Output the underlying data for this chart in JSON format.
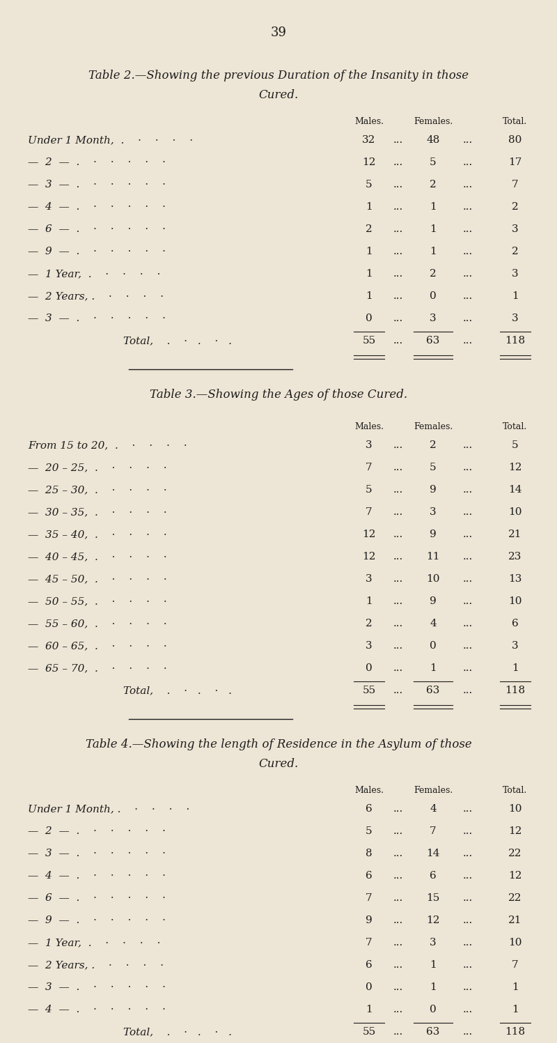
{
  "bg_color": "#ede5d5",
  "page_number": "39",
  "table2": {
    "title_line1": "Table 2.—Showing the previous Duration of the Insanity in those",
    "title_line2": "Cured.",
    "rows": [
      {
        "label": "Under 1 Month,  .    ·    ·    ·    ·",
        "males": "32",
        "females": "48",
        "total": "80"
      },
      {
        "label": "—  2  —  .    ·    ·    ·    ·    ·",
        "males": "12",
        "females": "5",
        "total": "17"
      },
      {
        "label": "—  3  —  .    ·    ·    ·    ·    ·",
        "males": "5",
        "females": "2",
        "total": "7"
      },
      {
        "label": "—  4  —  .    ·    ·    ·    ·    ·",
        "males": "1",
        "females": "1",
        "total": "2"
      },
      {
        "label": "—  6  —  .    ·    ·    ·    ·    ·",
        "males": "2",
        "females": "1",
        "total": "3"
      },
      {
        "label": "—  9  —  .    ·    ·    ·    ·    ·",
        "males": "1",
        "females": "1",
        "total": "2"
      },
      {
        "label": "—  1 Year,  .    ·    ·    ·    ·",
        "males": "1",
        "females": "2",
        "total": "3"
      },
      {
        "label": "—  2 Years, .    ·    ·    ·    ·",
        "males": "1",
        "females": "0",
        "total": "1"
      },
      {
        "label": "—  3  —  .    ·    ·    ·    ·    ·",
        "males": "0",
        "females": "3",
        "total": "3"
      }
    ],
    "total": {
      "males": "55",
      "females": "63",
      "total": "118"
    }
  },
  "table3": {
    "title": "Table 3.—Showing the Ages of those Cured.",
    "rows": [
      {
        "label": "From 15 to 20,  .    ·    ·    ·    ·",
        "males": "3",
        "females": "2",
        "total": "5"
      },
      {
        "label": "—  20 – 25,  .    ·    ·    ·    ·",
        "males": "7",
        "females": "5",
        "total": "12"
      },
      {
        "label": "—  25 – 30,  .    ·    ·    ·    ·",
        "males": "5",
        "females": "9",
        "total": "14"
      },
      {
        "label": "—  30 – 35,  .    ·    ·    ·    ·",
        "males": "7",
        "females": "3",
        "total": "10"
      },
      {
        "label": "—  35 – 40,  .    ·    ·    ·    ·",
        "males": "12",
        "females": "9",
        "total": "21"
      },
      {
        "label": "—  40 – 45,  .    ·    ·    ·    ·",
        "males": "12",
        "females": "11",
        "total": "23"
      },
      {
        "label": "—  45 – 50,  .    ·    ·    ·    ·",
        "males": "3",
        "females": "10",
        "total": "13"
      },
      {
        "label": "—  50 – 55,  .    ·    ·    ·    ·",
        "males": "1",
        "females": "9",
        "total": "10"
      },
      {
        "label": "—  55 – 60,  .    ·    ·    ·    ·",
        "males": "2",
        "females": "4",
        "total": "6"
      },
      {
        "label": "—  60 – 65,  .    ·    ·    ·    ·",
        "males": "3",
        "females": "0",
        "total": "3"
      },
      {
        "label": "—  65 – 70,  .    ·    ·    ·    ·",
        "males": "0",
        "females": "1",
        "total": "1"
      }
    ],
    "total": {
      "males": "55",
      "females": "63",
      "total": "118"
    }
  },
  "table4": {
    "title_line1": "Table 4.—Showing the length of Residence in the Asylum of those",
    "title_line2": "Cured.",
    "rows": [
      {
        "label": "Under 1 Month, .    ·    ·    ·    ·",
        "males": "6",
        "females": "4",
        "total": "10"
      },
      {
        "label": "—  2  —  .    ·    ·    ·    ·    ·",
        "males": "5",
        "females": "7",
        "total": "12"
      },
      {
        "label": "—  3  —  .    ·    ·    ·    ·    ·",
        "males": "8",
        "females": "14",
        "total": "22"
      },
      {
        "label": "—  4  —  .    ·    ·    ·    ·    ·",
        "males": "6",
        "females": "6",
        "total": "12"
      },
      {
        "label": "—  6  —  .    ·    ·    ·    ·    ·",
        "males": "7",
        "females": "15",
        "total": "22"
      },
      {
        "label": "—  9  —  .    ·    ·    ·    ·    ·",
        "males": "9",
        "females": "12",
        "total": "21"
      },
      {
        "label": "—  1 Year,  .    ·    ·    ·    ·",
        "males": "7",
        "females": "3",
        "total": "10"
      },
      {
        "label": "—  2 Years, .    ·    ·    ·    ·",
        "males": "6",
        "females": "1",
        "total": "7"
      },
      {
        "label": "—  3  —  .    ·    ·    ·    ·    ·",
        "males": "0",
        "females": "1",
        "total": "1"
      },
      {
        "label": "—  4  —  .    ·    ·    ·    ·    ·",
        "males": "1",
        "females": "0",
        "total": "1"
      }
    ],
    "total": {
      "males": "55",
      "females": "63",
      "total": "118"
    }
  }
}
